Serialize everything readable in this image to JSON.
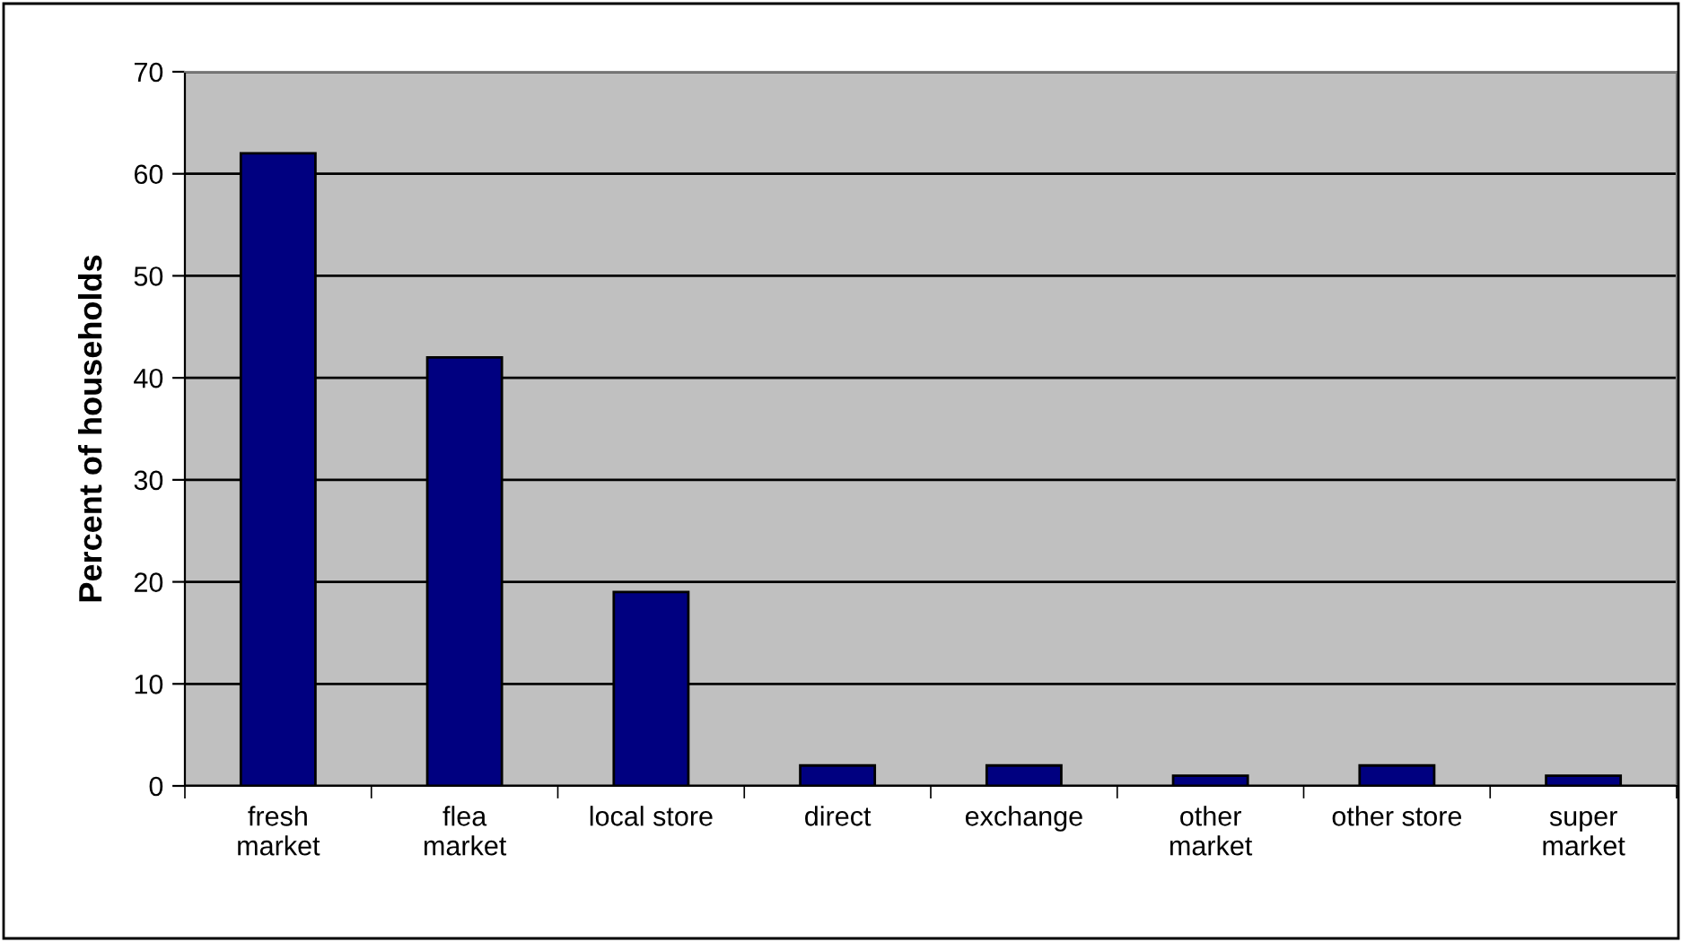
{
  "chart_data": {
    "type": "bar",
    "ylabel": "Percent of households",
    "categories": [
      "fresh\nmarket",
      "flea\nmarket",
      "local store",
      "direct",
      "exchange",
      "other\nmarket",
      "other store",
      "super\nmarket"
    ],
    "values": [
      62,
      42,
      19,
      2,
      2,
      1,
      2,
      1
    ],
    "color": "#000080",
    "ylim": [
      0,
      70
    ],
    "yticks": [
      0,
      10,
      20,
      30,
      40,
      50,
      60,
      70
    ],
    "grid": "y",
    "legend": false
  }
}
